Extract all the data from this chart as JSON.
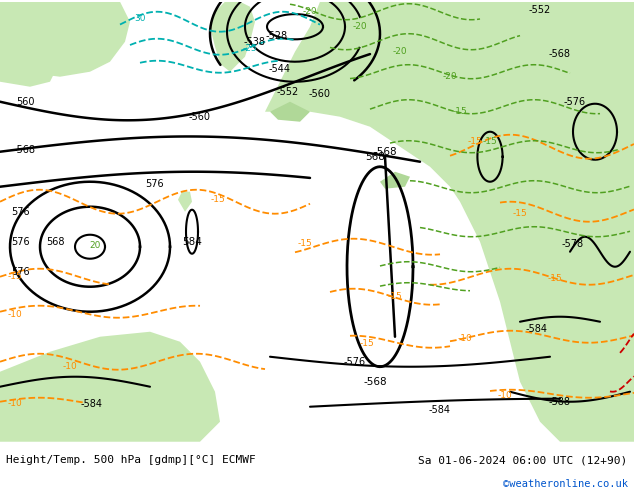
{
  "title_left": "Height/Temp. 500 hPa [gdmp][°C] ECMWF",
  "title_right": "Sa 01-06-2024 06:00 UTC (12+90)",
  "credit": "©weatheronline.co.uk",
  "bg_color": "#d8d8d8",
  "land_color": "#c8e8b4",
  "land_color2": "#b0d898",
  "ocean_color": "#d0d0d0",
  "figsize": [
    6.34,
    4.9
  ],
  "dpi": 100,
  "bottom_text_color": "#000000",
  "credit_color": "#0055cc",
  "bottom_bar_color": "#ffffff",
  "contour_color": "#000000",
  "orange_color": "#ff8c00",
  "cyan_color": "#00b0b0",
  "green_color": "#50a020",
  "red_color": "#cc0000"
}
